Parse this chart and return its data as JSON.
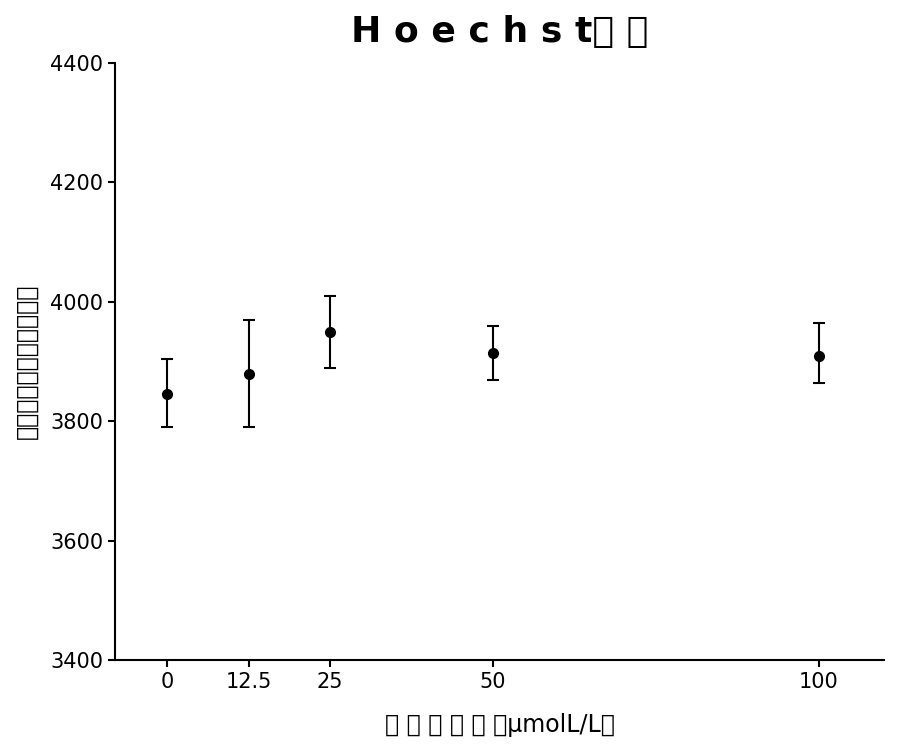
{
  "title": "H o e c h s t通 道",
  "xlabel": "六 价 铬 浓 度 （μmolL/L）",
  "ylabel": "单个细胞核胞平均荧光值",
  "x_values": [
    0,
    12.5,
    25,
    50,
    100
  ],
  "y_values": [
    3845,
    3880,
    3950,
    3915,
    3910
  ],
  "y_err_upper": [
    60,
    90,
    60,
    45,
    55
  ],
  "y_err_lower": [
    55,
    90,
    60,
    45,
    45
  ],
  "ylim": [
    3400,
    4400
  ],
  "yticks": [
    3400,
    3600,
    3800,
    4000,
    4200,
    4400
  ],
  "xticks": [
    0,
    12.5,
    25,
    50,
    100
  ],
  "line_color": "#000000",
  "marker": "o",
  "markersize": 7,
  "linewidth": 1.8,
  "capsize": 4,
  "elinewidth": 1.5,
  "title_fontsize": 26,
  "label_fontsize": 17,
  "tick_fontsize": 15,
  "background_color": "#ffffff"
}
